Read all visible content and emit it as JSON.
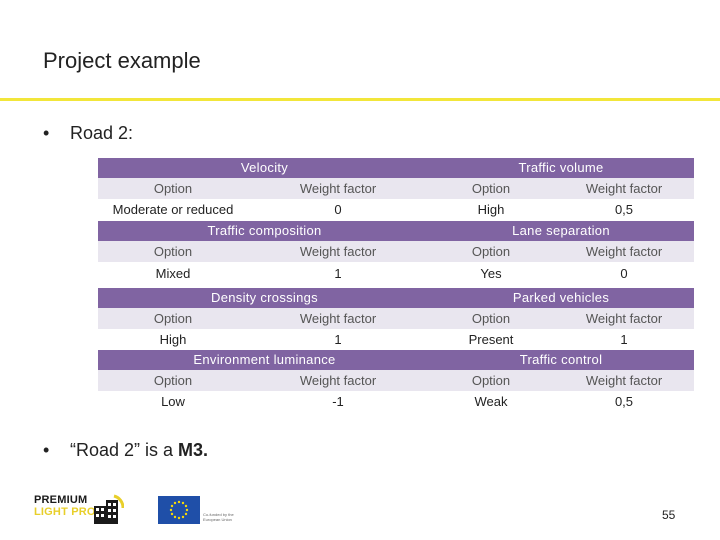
{
  "slide": {
    "title": "Project example",
    "bullet1": "Road 2:",
    "bullet2_prefix": "“Road 2” is a ",
    "bullet2_emph": "M3.",
    "bullet_symbol": "•",
    "page_number": "55"
  },
  "left_table": [
    {
      "header": "Velocity",
      "option_label": "Option",
      "weight_label": "Weight factor",
      "option": "Moderate or reduced",
      "weight": "0"
    },
    {
      "header": "Traffic composition",
      "option_label": "Option",
      "weight_label": "Weight factor",
      "option": "Mixed",
      "weight": "1"
    },
    {
      "header": "Density crossings",
      "option_label": "Option",
      "weight_label": "Weight factor",
      "option": "High",
      "weight": "1"
    },
    {
      "header": "Environment luminance",
      "option_label": "Option",
      "weight_label": "Weight factor",
      "option": "Low",
      "weight": "-1"
    }
  ],
  "right_table": [
    {
      "header": "Traffic volume",
      "option_label": "Option",
      "weight_label": "Weight factor",
      "option": "High",
      "weight": "0,5"
    },
    {
      "header": "Lane separation",
      "option_label": "Option",
      "weight_label": "Weight factor",
      "option": "Yes",
      "weight": "0"
    },
    {
      "header": "Parked vehicles",
      "option_label": "Option",
      "weight_label": "Weight factor",
      "option": "Present",
      "weight": "1"
    },
    {
      "header": "Traffic control",
      "option_label": "Option",
      "weight_label": "Weight factor",
      "option": "Weak",
      "weight": "0,5"
    }
  ],
  "logos": {
    "premium_line1": "PREMIUM",
    "premium_line2": "LIGHT PRO",
    "eu_caption": "Co-funded by the European Union"
  },
  "colors": {
    "header_bg": "#8064a2",
    "subheader_bg": "#e9e6ef",
    "accent_rule": "#f2e63a"
  }
}
